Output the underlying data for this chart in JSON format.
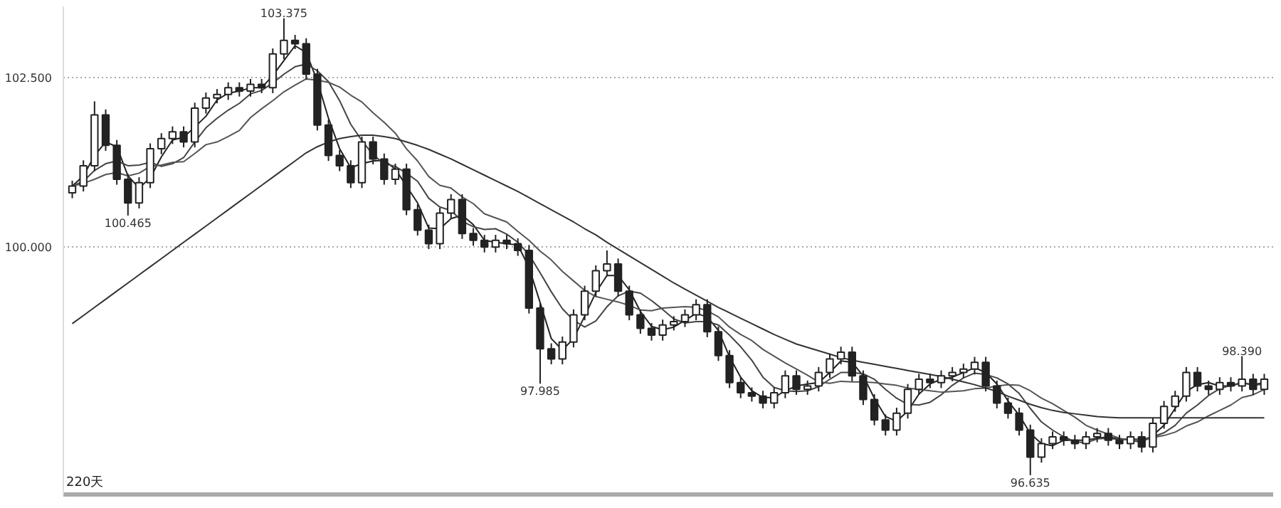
{
  "chart_data": {
    "type": "candlestick",
    "categories": [
      null,
      null,
      null,
      null,
      null,
      null,
      null,
      null,
      null,
      null,
      null,
      null,
      null,
      null,
      null,
      null,
      null,
      null,
      null,
      null,
      null,
      null,
      null,
      null,
      null,
      null,
      null,
      null,
      null,
      null,
      null,
      null,
      null,
      null,
      null,
      null,
      null,
      null,
      null,
      null,
      null,
      null,
      null,
      null,
      null,
      null,
      null,
      null,
      null,
      null,
      null,
      null,
      null,
      null,
      null,
      null,
      null,
      null,
      null,
      null,
      null,
      null,
      null,
      null,
      null,
      null,
      null,
      null,
      null,
      null,
      null,
      null,
      null,
      null,
      null,
      null,
      null,
      null,
      null,
      null,
      null,
      null,
      null,
      null,
      null,
      null,
      null,
      null,
      null,
      null,
      null,
      null,
      null,
      null,
      null,
      null,
      null,
      null,
      null,
      null,
      null,
      null,
      null,
      null,
      null,
      null,
      null,
      null
    ],
    "ohlc": [
      [
        100.8,
        100.98,
        100.72,
        100.9
      ],
      [
        100.9,
        101.28,
        100.82,
        101.2
      ],
      [
        101.2,
        102.15,
        101.12,
        101.95
      ],
      [
        101.95,
        102.03,
        101.42,
        101.5
      ],
      [
        101.5,
        101.58,
        100.92,
        101.0
      ],
      [
        101.0,
        101.08,
        100.465,
        100.65
      ],
      [
        100.65,
        101.03,
        100.57,
        100.95
      ],
      [
        100.95,
        101.53,
        100.87,
        101.45
      ],
      [
        101.45,
        101.68,
        101.37,
        101.6
      ],
      [
        101.6,
        101.78,
        101.52,
        101.7
      ],
      [
        101.7,
        101.78,
        101.47,
        101.55
      ],
      [
        101.55,
        102.13,
        101.47,
        102.05
      ],
      [
        102.05,
        102.28,
        101.97,
        102.2
      ],
      [
        102.2,
        102.33,
        102.12,
        102.25
      ],
      [
        102.25,
        102.43,
        102.17,
        102.35
      ],
      [
        102.35,
        102.43,
        102.22,
        102.3
      ],
      [
        102.3,
        102.48,
        102.22,
        102.4
      ],
      [
        102.4,
        102.48,
        102.27,
        102.35
      ],
      [
        102.35,
        102.93,
        102.27,
        102.85
      ],
      [
        102.85,
        103.375,
        102.77,
        103.05
      ],
      [
        103.05,
        103.13,
        102.92,
        103.0
      ],
      [
        103.0,
        103.08,
        102.47,
        102.55
      ],
      [
        102.55,
        102.63,
        101.72,
        101.8
      ],
      [
        101.8,
        101.88,
        101.27,
        101.35
      ],
      [
        101.35,
        101.43,
        101.12,
        101.2
      ],
      [
        101.2,
        101.28,
        100.87,
        100.95
      ],
      [
        100.95,
        101.63,
        100.87,
        101.55
      ],
      [
        101.55,
        101.63,
        101.22,
        101.3
      ],
      [
        101.3,
        101.38,
        100.92,
        101.0
      ],
      [
        101.0,
        101.23,
        100.92,
        101.15
      ],
      [
        101.15,
        101.23,
        100.47,
        100.55
      ],
      [
        100.55,
        100.63,
        100.17,
        100.25
      ],
      [
        100.25,
        100.33,
        99.97,
        100.05
      ],
      [
        100.05,
        100.58,
        99.97,
        100.5
      ],
      [
        100.5,
        100.78,
        100.42,
        100.7
      ],
      [
        100.7,
        100.78,
        100.12,
        100.2
      ],
      [
        100.2,
        100.28,
        100.02,
        100.1
      ],
      [
        100.1,
        100.18,
        99.92,
        100.0
      ],
      [
        100.0,
        100.18,
        99.92,
        100.1
      ],
      [
        100.1,
        100.18,
        99.97,
        100.05
      ],
      [
        100.05,
        100.13,
        99.87,
        99.95
      ],
      [
        99.95,
        100.03,
        99.02,
        99.1
      ],
      [
        99.1,
        99.18,
        97.985,
        98.5
      ],
      [
        98.5,
        98.58,
        98.27,
        98.35
      ],
      [
        98.35,
        98.68,
        98.27,
        98.6
      ],
      [
        98.6,
        99.08,
        98.52,
        99.0
      ],
      [
        99.0,
        99.43,
        98.92,
        99.35
      ],
      [
        99.35,
        99.73,
        99.27,
        99.65
      ],
      [
        99.65,
        99.95,
        99.57,
        99.75
      ],
      [
        99.75,
        99.83,
        99.27,
        99.35
      ],
      [
        99.35,
        99.43,
        98.92,
        99.0
      ],
      [
        99.0,
        99.08,
        98.72,
        98.8
      ],
      [
        98.8,
        98.88,
        98.62,
        98.7
      ],
      [
        98.7,
        98.93,
        98.62,
        98.85
      ],
      [
        98.85,
        98.98,
        98.77,
        98.9
      ],
      [
        98.9,
        99.08,
        98.82,
        99.0
      ],
      [
        99.0,
        99.23,
        98.92,
        99.15
      ],
      [
        99.15,
        99.23,
        98.67,
        98.75
      ],
      [
        98.75,
        98.83,
        98.32,
        98.4
      ],
      [
        98.4,
        98.48,
        97.92,
        98.0
      ],
      [
        98.0,
        98.08,
        97.77,
        97.85
      ],
      [
        97.85,
        97.93,
        97.72,
        97.8
      ],
      [
        97.8,
        97.88,
        97.62,
        97.7
      ],
      [
        97.7,
        97.93,
        97.62,
        97.85
      ],
      [
        97.85,
        98.18,
        97.77,
        98.1
      ],
      [
        98.1,
        98.18,
        97.82,
        97.9
      ],
      [
        97.9,
        98.03,
        97.82,
        97.95
      ],
      [
        97.95,
        98.23,
        97.87,
        98.15
      ],
      [
        98.15,
        98.43,
        98.07,
        98.35
      ],
      [
        98.35,
        98.53,
        98.27,
        98.45
      ],
      [
        98.45,
        98.53,
        98.02,
        98.1
      ],
      [
        98.1,
        98.18,
        97.67,
        97.75
      ],
      [
        97.75,
        97.83,
        97.37,
        97.45
      ],
      [
        97.45,
        97.53,
        97.22,
        97.3
      ],
      [
        97.3,
        97.63,
        97.22,
        97.55
      ],
      [
        97.55,
        97.98,
        97.47,
        97.9
      ],
      [
        97.9,
        98.13,
        97.82,
        98.05
      ],
      [
        98.05,
        98.13,
        97.92,
        98.0
      ],
      [
        98.0,
        98.18,
        97.92,
        98.1
      ],
      [
        98.1,
        98.23,
        98.02,
        98.15
      ],
      [
        98.15,
        98.28,
        98.07,
        98.2
      ],
      [
        98.2,
        98.38,
        98.12,
        98.3
      ],
      [
        98.3,
        98.38,
        97.87,
        97.95
      ],
      [
        97.95,
        98.03,
        97.62,
        97.7
      ],
      [
        97.7,
        97.78,
        97.47,
        97.55
      ],
      [
        97.55,
        97.63,
        97.22,
        97.3
      ],
      [
        97.3,
        97.38,
        96.635,
        96.9
      ],
      [
        96.9,
        97.18,
        96.82,
        97.1
      ],
      [
        97.1,
        97.28,
        97.02,
        97.2
      ],
      [
        97.2,
        97.28,
        97.07,
        97.15
      ],
      [
        97.15,
        97.23,
        97.02,
        97.1
      ],
      [
        97.1,
        97.28,
        97.02,
        97.2
      ],
      [
        97.2,
        97.33,
        97.12,
        97.25
      ],
      [
        97.25,
        97.33,
        97.07,
        97.15
      ],
      [
        97.15,
        97.23,
        97.02,
        97.1
      ],
      [
        97.1,
        97.28,
        97.02,
        97.2
      ],
      [
        97.2,
        97.28,
        96.97,
        97.05
      ],
      [
        97.05,
        97.48,
        96.97,
        97.4
      ],
      [
        97.4,
        97.73,
        97.32,
        97.65
      ],
      [
        97.65,
        97.88,
        97.57,
        97.8
      ],
      [
        97.8,
        98.23,
        97.72,
        98.15
      ],
      [
        98.15,
        98.23,
        97.87,
        97.95
      ],
      [
        97.95,
        98.03,
        97.82,
        97.9
      ],
      [
        97.9,
        98.08,
        97.82,
        98.0
      ],
      [
        98.0,
        98.08,
        97.87,
        97.95
      ],
      [
        97.95,
        98.39,
        97.87,
        98.05
      ],
      [
        98.05,
        98.13,
        97.82,
        97.9
      ],
      [
        97.9,
        98.13,
        97.82,
        98.05
      ]
    ],
    "series": [
      {
        "type": "line",
        "color": "#222222",
        "values": [
          100.9,
          101.05,
          101.35,
          101.55,
          101.48,
          101.05,
          100.87,
          101.02,
          101.33,
          101.58,
          101.62,
          101.77,
          101.93,
          102.17,
          102.27,
          102.3,
          102.35,
          102.35,
          102.53,
          102.75,
          102.97,
          102.87,
          102.45,
          101.9,
          101.45,
          101.17,
          101.23,
          101.27,
          101.28,
          101.15,
          100.9,
          100.65,
          100.28,
          100.27,
          100.42,
          100.47,
          100.33,
          100.1,
          100.07,
          100.05,
          100.03,
          99.7,
          99.18,
          98.65,
          98.48,
          98.65,
          98.98,
          99.33,
          99.58,
          99.58,
          99.37,
          99.05,
          98.83,
          98.78,
          98.82,
          98.92,
          99.02,
          98.97,
          98.77,
          98.38,
          98.08,
          97.88,
          97.78,
          97.78,
          97.88,
          97.95,
          97.98,
          98.0,
          98.15,
          98.32,
          98.3,
          98.1,
          97.77,
          97.5,
          97.43,
          97.58,
          97.83,
          97.98,
          98.05,
          98.08,
          98.15,
          98.22,
          98.15,
          97.98,
          97.73,
          97.52,
          97.25,
          97.1,
          97.07,
          97.15,
          97.15,
          97.15,
          97.18,
          97.2,
          97.17,
          97.15,
          97.12,
          97.22,
          97.37,
          97.62,
          97.87,
          97.97,
          98.0,
          97.95,
          97.95,
          98.0,
          97.97,
          98.0
        ]
      },
      {
        "type": "line",
        "color": "#444444",
        "values": [
          100.9,
          100.97,
          101.13,
          101.23,
          101.27,
          101.2,
          101.21,
          101.25,
          101.19,
          101.23,
          101.32,
          101.55,
          101.76,
          101.9,
          102.02,
          102.12,
          102.26,
          102.31,
          102.42,
          102.55,
          102.66,
          102.7,
          102.6,
          102.44,
          102.16,
          101.81,
          101.57,
          101.36,
          101.23,
          101.19,
          101.09,
          100.97,
          100.72,
          100.59,
          100.54,
          100.38,
          100.3,
          100.26,
          100.27,
          100.19,
          100.07,
          99.89,
          99.62,
          99.34,
          99.09,
          98.92,
          98.82,
          98.91,
          99.12,
          99.28,
          99.35,
          99.32,
          99.21,
          99.08,
          98.94,
          98.88,
          98.9,
          98.9,
          98.85,
          98.7,
          98.53,
          98.33,
          98.08,
          97.93,
          97.88,
          97.87,
          97.88,
          97.94,
          98.05,
          98.15,
          98.15,
          98.13,
          98.05,
          97.9,
          97.77,
          97.68,
          97.67,
          97.71,
          97.82,
          97.96,
          98.07,
          98.14,
          98.12,
          98.07,
          97.98,
          97.84,
          97.62,
          97.42,
          97.3,
          97.2,
          97.13,
          97.11,
          97.17,
          97.18,
          97.16,
          97.17,
          97.16,
          97.2,
          97.26,
          97.37,
          97.55,
          97.67,
          97.81,
          97.91,
          97.96,
          98.0,
          97.96,
          97.98
        ]
      },
      {
        "type": "line",
        "color": "#555555",
        "values": [
          100.9,
          100.94,
          101.0,
          101.07,
          101.1,
          101.05,
          101.09,
          101.19,
          101.21,
          101.25,
          101.26,
          101.38,
          101.51,
          101.55,
          101.63,
          101.72,
          101.91,
          102.04,
          102.16,
          102.29,
          102.39,
          102.48,
          102.46,
          102.43,
          102.36,
          102.24,
          102.14,
          101.98,
          101.84,
          101.68,
          101.45,
          101.27,
          101.04,
          100.91,
          100.87,
          100.74,
          100.64,
          100.49,
          100.43,
          100.37,
          100.23,
          100.1,
          99.94,
          99.81,
          99.64,
          99.5,
          99.36,
          99.27,
          99.23,
          99.19,
          99.14,
          99.07,
          99.06,
          99.1,
          99.11,
          99.12,
          99.11,
          99.06,
          98.97,
          98.82,
          98.71,
          98.62,
          98.49,
          98.39,
          98.29,
          98.2,
          98.11,
          98.01,
          97.99,
          98.02,
          98.01,
          98.01,
          98.0,
          97.98,
          97.96,
          97.92,
          97.9,
          97.88,
          97.86,
          97.87,
          97.88,
          97.91,
          97.92,
          97.95,
          97.97,
          97.96,
          97.88,
          97.77,
          97.69,
          97.59,
          97.49,
          97.37,
          97.3,
          97.24,
          97.18,
          97.15,
          97.14,
          97.19,
          97.22,
          97.27,
          97.36,
          97.42,
          97.51,
          97.59,
          97.67,
          97.78,
          97.82,
          97.9
        ]
      },
      {
        "type": "line",
        "color": "#333333",
        "values": [
          98.87,
          98.99,
          99.11,
          99.23,
          99.35,
          99.47,
          99.59,
          99.71,
          99.83,
          99.95,
          100.07,
          100.19,
          100.31,
          100.43,
          100.55,
          100.67,
          100.79,
          100.91,
          101.03,
          101.15,
          101.27,
          101.39,
          101.48,
          101.55,
          101.6,
          101.63,
          101.65,
          101.65,
          101.63,
          101.6,
          101.55,
          101.5,
          101.44,
          101.37,
          101.3,
          101.22,
          101.14,
          101.06,
          100.98,
          100.9,
          100.82,
          100.73,
          100.64,
          100.55,
          100.46,
          100.37,
          100.27,
          100.18,
          100.07,
          99.97,
          99.87,
          99.77,
          99.67,
          99.57,
          99.47,
          99.38,
          99.29,
          99.2,
          99.11,
          99.03,
          98.95,
          98.87,
          98.79,
          98.71,
          98.64,
          98.57,
          98.52,
          98.47,
          98.42,
          98.37,
          98.33,
          98.3,
          98.27,
          98.24,
          98.21,
          98.18,
          98.15,
          98.12,
          98.09,
          98.05,
          98.01,
          97.97,
          97.92,
          97.87,
          97.8,
          97.74,
          97.68,
          97.63,
          97.59,
          97.56,
          97.54,
          97.52,
          97.5,
          97.49,
          97.48,
          97.48,
          97.48,
          97.48,
          97.48,
          97.48,
          97.48,
          97.48,
          97.48,
          97.48,
          97.48,
          97.48,
          97.48,
          97.48
        ]
      }
    ],
    "ylim": [
      96.35,
      103.55
    ],
    "yticks": [
      {
        "value": 102.5,
        "label": "102.500"
      },
      {
        "value": 100,
        "label": "100.000"
      }
    ],
    "grid": "y",
    "tick_labels": "y",
    "annotations": [
      {
        "text": "103.375",
        "y": 103.375
      },
      {
        "text": "100.465",
        "y": 100.465
      },
      {
        "text": "97.985",
        "y": 97.985
      },
      {
        "text": "96.635",
        "y": 96.635
      },
      {
        "text": "98.390",
        "y": 98.39
      },
      "220天"
    ]
  }
}
